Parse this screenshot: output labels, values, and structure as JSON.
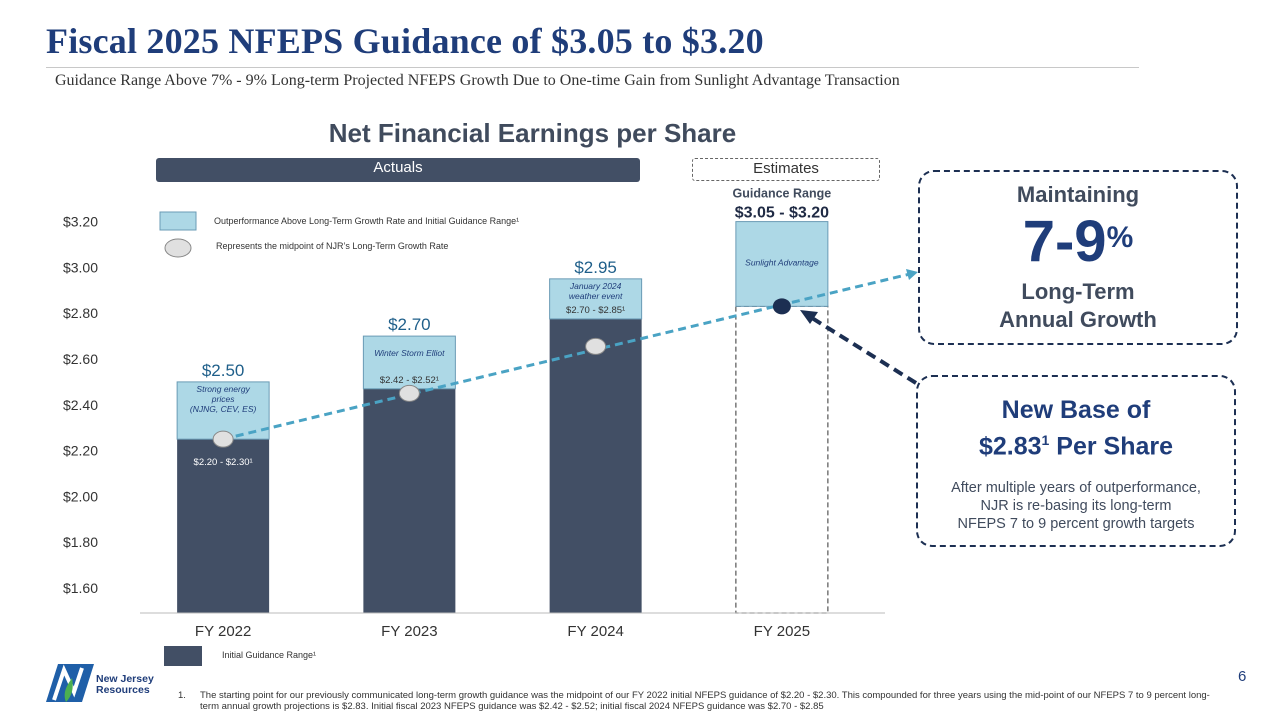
{
  "title": "Fiscal 2025 NFEPS Guidance of $3.05 to $3.20",
  "subtitle": "Guidance Range Above 7% - 9% Long-term Projected NFEPS Growth Due to One-time Gain from Sunlight Advantage Transaction",
  "header": {
    "actuals": "Actuals",
    "estimates": "Estimates"
  },
  "colors": {
    "bar": "#424f65",
    "outperformance": "#add8e6",
    "trend": "#4aa3c4",
    "title": "#1f3d7a",
    "dark": "#1c2f52"
  },
  "chart_data": {
    "type": "bar",
    "title": "Net Financial Earnings per Share",
    "categories": [
      "FY 2022",
      "FY 2023",
      "FY 2024",
      "FY 2025"
    ],
    "ylim": [
      1.55,
      3.25
    ],
    "y_ticks": [
      {
        "v": 3.2,
        "label": "$3.20"
      },
      {
        "v": 3.0,
        "label": "$3.00"
      },
      {
        "v": 2.8,
        "label": "$2.80"
      },
      {
        "v": 2.6,
        "label": "$2.60"
      },
      {
        "v": 2.4,
        "label": "$2.40"
      },
      {
        "v": 2.2,
        "label": "$2.20"
      },
      {
        "v": 2.0,
        "label": "$2.00"
      },
      {
        "v": 1.8,
        "label": "$1.80"
      },
      {
        "v": 1.6,
        "label": "$1.60"
      }
    ],
    "bars": [
      {
        "category": "FY 2022",
        "base": 2.25,
        "top": 2.5,
        "value_label": "$2.50",
        "range_label": "$2.20 - $2.30¹",
        "driver": [
          "Strong energy",
          "prices",
          "(NJNG, CEV, ES)"
        ],
        "midpoint": 2.25
      },
      {
        "category": "FY 2023",
        "base": 2.47,
        "top": 2.7,
        "value_label": "$2.70",
        "range_label": "$2.42 - $2.52¹",
        "driver": [
          "Winter Storm Elliot"
        ],
        "midpoint": 2.45
      },
      {
        "category": "FY 2024",
        "base": 2.775,
        "top": 2.95,
        "value_label": "$2.95",
        "range_label": "$2.70 - $2.85¹",
        "driver": [
          "January 2024",
          "weather event"
        ],
        "midpoint": 2.655
      },
      {
        "category": "FY 2025",
        "base": 2.83,
        "top": 3.2,
        "value_label": "$3.05 - $3.20",
        "value_header": "Guidance Range",
        "driver": [
          "Sunlight Advantage"
        ],
        "midpoint": 2.83,
        "estimate": true
      }
    ],
    "legend": [
      {
        "key": "outperformance",
        "label": "Outperformance Above Long-Term Growth Rate and Initial Guidance Range¹"
      },
      {
        "key": "midpoint",
        "label": "Represents the midpoint of NJR’s Long-Term Growth Rate"
      },
      {
        "key": "initial",
        "label": "Initial Guidance Range¹"
      }
    ]
  },
  "callout_growth": {
    "line1": "Maintaining",
    "big": "7-9",
    "pct": "%",
    "line3a": "Long-Term",
    "line3b": "Annual Growth"
  },
  "callout_base": {
    "h1a": "New Base of",
    "h1b_pre": "$2.83",
    "h1b_sup": "1",
    "h1b_post": " Per Share",
    "body1": "After multiple years of outperformance,",
    "body2": "NJR is re-basing its long-term",
    "body3": "NFEPS 7 to 9 percent growth targets"
  },
  "page_number": "6",
  "logo": {
    "line1": "New Jersey",
    "line2": "Resources"
  },
  "footnote": {
    "num": "1.",
    "text": "The starting point for our previously communicated long-term growth guidance was the midpoint of our FY 2022 initial NFEPS guidance of $2.20 - $2.30. This compounded for three years using the mid-point of our NFEPS 7 to 9 percent long-term annual growth projections is $2.83. Initial fiscal 2023 NFEPS guidance was $2.42 - $2.52; initial fiscal 2024 NFEPS guidance was $2.70 - $2.85"
  }
}
